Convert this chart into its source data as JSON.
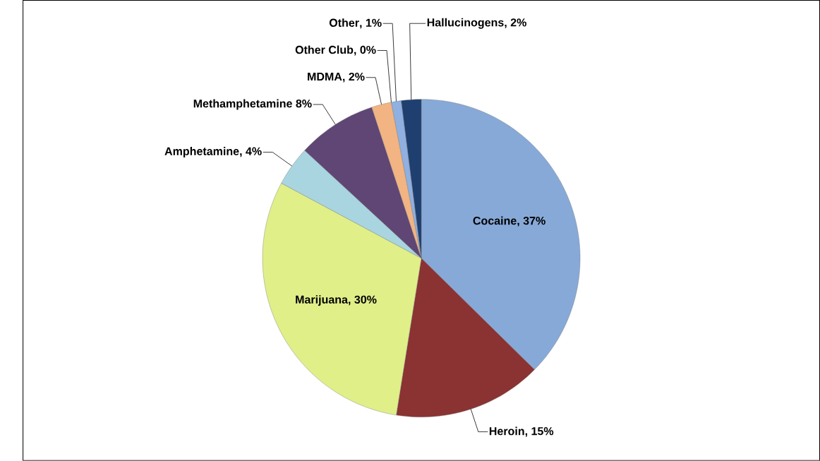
{
  "chart_data": {
    "type": "pie",
    "categories": [
      "Cocaine",
      "Heroin",
      "Marijuana",
      "Amphetamine",
      "Methamphetamine",
      "MDMA",
      "Other Club",
      "Other",
      "Hallucinogens"
    ],
    "values": [
      37,
      15,
      30,
      4,
      8,
      2,
      0,
      1,
      2
    ],
    "value_labels": [
      ", 37%",
      ", 15%",
      ", 30%",
      ", 4%",
      " 8%",
      ", 2%",
      ", 0%",
      ", 1%",
      ", 2%"
    ],
    "colors": [
      "#87a9d8",
      "#8b3232",
      "#e0ef88",
      "#a8d5e0",
      "#5f4675",
      "#f2b482",
      "#808080",
      "#8fb0e0",
      "#1f3f70"
    ]
  }
}
